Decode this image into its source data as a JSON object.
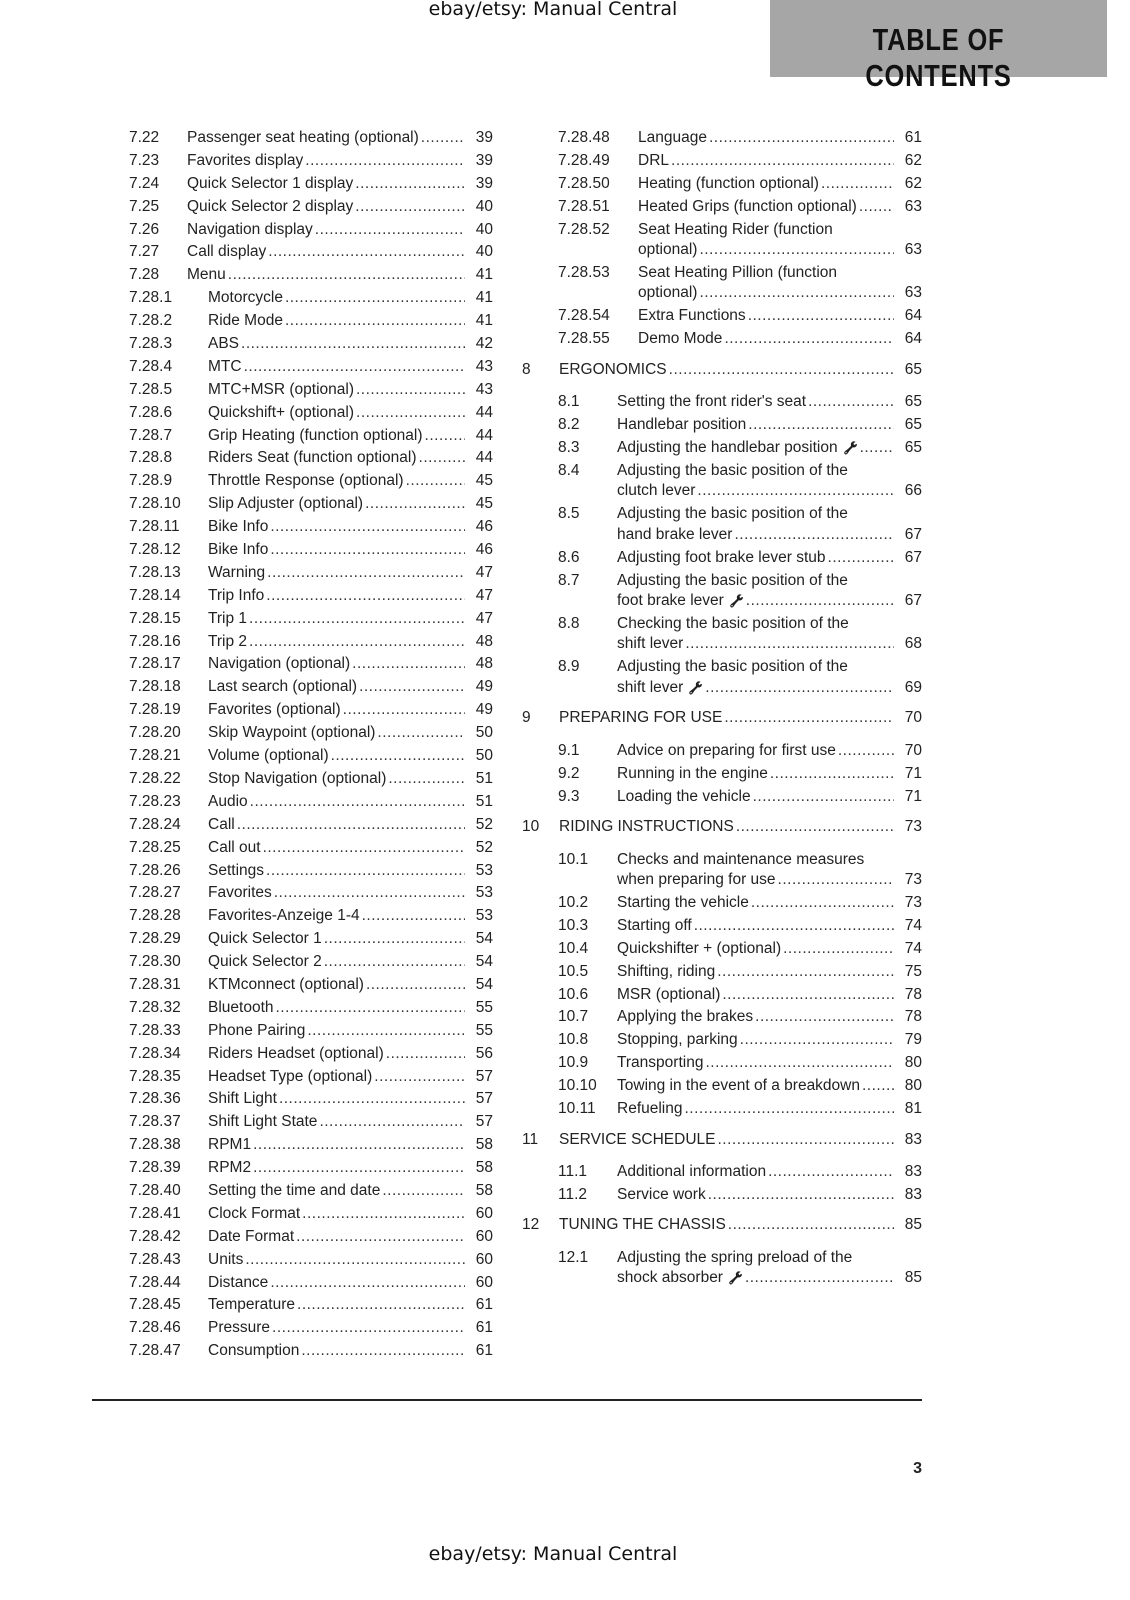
{
  "watermark_top": "ebay/etsy: Manual Central",
  "watermark_bottom": "ebay/etsy: Manual Central",
  "header": {
    "title": "TABLE OF CONTENTS",
    "box_color": "#a6a6a6"
  },
  "page_number": "3",
  "left_column": [
    {
      "num": "7.22",
      "level": 1,
      "lines": [
        "Passenger seat heating (optional)"
      ],
      "page": "39"
    },
    {
      "num": "7.23",
      "level": 1,
      "lines": [
        "Favorites display"
      ],
      "page": "39"
    },
    {
      "num": "7.24",
      "level": 1,
      "lines": [
        "Quick Selector 1 display"
      ],
      "page": "39"
    },
    {
      "num": "7.25",
      "level": 1,
      "lines": [
        "Quick Selector 2 display"
      ],
      "page": "40"
    },
    {
      "num": "7.26",
      "level": 1,
      "lines": [
        "Navigation display"
      ],
      "page": "40"
    },
    {
      "num": "7.27",
      "level": 1,
      "lines": [
        "Call display"
      ],
      "page": "40"
    },
    {
      "num": "7.28",
      "level": 1,
      "lines": [
        "Menu"
      ],
      "page": "41"
    },
    {
      "num": "7.28.1",
      "level": 2,
      "lines": [
        "Motorcycle"
      ],
      "page": "41"
    },
    {
      "num": "7.28.2",
      "level": 2,
      "lines": [
        "Ride Mode"
      ],
      "page": "41"
    },
    {
      "num": "7.28.3",
      "level": 2,
      "lines": [
        "ABS"
      ],
      "page": "42"
    },
    {
      "num": "7.28.4",
      "level": 2,
      "lines": [
        "MTC"
      ],
      "page": "43"
    },
    {
      "num": "7.28.5",
      "level": 2,
      "lines": [
        "MTC+MSR (optional)"
      ],
      "page": "43"
    },
    {
      "num": "7.28.6",
      "level": 2,
      "lines": [
        "Quickshift+ (optional)"
      ],
      "page": "44"
    },
    {
      "num": "7.28.7",
      "level": 2,
      "lines": [
        "Grip Heating (function optional)"
      ],
      "page": "44"
    },
    {
      "num": "7.28.8",
      "level": 2,
      "lines": [
        "Riders Seat (function optional)"
      ],
      "page": "44"
    },
    {
      "num": "7.28.9",
      "level": 2,
      "lines": [
        "Throttle Response (optional)"
      ],
      "page": "45"
    },
    {
      "num": "7.28.10",
      "level": 2,
      "lines": [
        "Slip Adjuster (optional)"
      ],
      "page": "45"
    },
    {
      "num": "7.28.11",
      "level": 2,
      "lines": [
        "Bike Info"
      ],
      "page": "46"
    },
    {
      "num": "7.28.12",
      "level": 2,
      "lines": [
        "Bike Info"
      ],
      "page": "46"
    },
    {
      "num": "7.28.13",
      "level": 2,
      "lines": [
        "Warning"
      ],
      "page": "47"
    },
    {
      "num": "7.28.14",
      "level": 2,
      "lines": [
        "Trip Info"
      ],
      "page": "47"
    },
    {
      "num": "7.28.15",
      "level": 2,
      "lines": [
        "Trip 1"
      ],
      "page": "47"
    },
    {
      "num": "7.28.16",
      "level": 2,
      "lines": [
        "Trip 2"
      ],
      "page": "48"
    },
    {
      "num": "7.28.17",
      "level": 2,
      "lines": [
        "Navigation (optional)"
      ],
      "page": "48"
    },
    {
      "num": "7.28.18",
      "level": 2,
      "lines": [
        "Last search (optional)"
      ],
      "page": "49"
    },
    {
      "num": "7.28.19",
      "level": 2,
      "lines": [
        "Favorites (optional)"
      ],
      "page": "49"
    },
    {
      "num": "7.28.20",
      "level": 2,
      "lines": [
        "Skip Waypoint (optional)"
      ],
      "page": "50"
    },
    {
      "num": "7.28.21",
      "level": 2,
      "lines": [
        "Volume (optional)"
      ],
      "page": "50"
    },
    {
      "num": "7.28.22",
      "level": 2,
      "lines": [
        "Stop Navigation (optional)"
      ],
      "page": "51"
    },
    {
      "num": "7.28.23",
      "level": 2,
      "lines": [
        "Audio"
      ],
      "page": "51"
    },
    {
      "num": "7.28.24",
      "level": 2,
      "lines": [
        "Call"
      ],
      "page": "52"
    },
    {
      "num": "7.28.25",
      "level": 2,
      "lines": [
        "Call out"
      ],
      "page": "52"
    },
    {
      "num": "7.28.26",
      "level": 2,
      "lines": [
        "Settings"
      ],
      "page": "53"
    },
    {
      "num": "7.28.27",
      "level": 2,
      "lines": [
        "Favorites"
      ],
      "page": "53"
    },
    {
      "num": "7.28.28",
      "level": 2,
      "lines": [
        "Favorites-Anzeige 1-4"
      ],
      "page": "53"
    },
    {
      "num": "7.28.29",
      "level": 2,
      "lines": [
        "Quick Selector 1"
      ],
      "page": "54"
    },
    {
      "num": "7.28.30",
      "level": 2,
      "lines": [
        "Quick Selector 2"
      ],
      "page": "54"
    },
    {
      "num": "7.28.31",
      "level": 2,
      "lines": [
        "KTMconnect (optional)"
      ],
      "page": "54"
    },
    {
      "num": "7.28.32",
      "level": 2,
      "lines": [
        "Bluetooth"
      ],
      "page": "55"
    },
    {
      "num": "7.28.33",
      "level": 2,
      "lines": [
        "Phone Pairing"
      ],
      "page": "55"
    },
    {
      "num": "7.28.34",
      "level": 2,
      "lines": [
        "Riders Headset (optional)"
      ],
      "page": "56"
    },
    {
      "num": "7.28.35",
      "level": 2,
      "lines": [
        "Headset Type (optional)"
      ],
      "page": "57"
    },
    {
      "num": "7.28.36",
      "level": 2,
      "lines": [
        "Shift Light"
      ],
      "page": "57"
    },
    {
      "num": "7.28.37",
      "level": 2,
      "lines": [
        "Shift Light State"
      ],
      "page": "57"
    },
    {
      "num": "7.28.38",
      "level": 2,
      "lines": [
        "RPM1"
      ],
      "page": "58"
    },
    {
      "num": "7.28.39",
      "level": 2,
      "lines": [
        "RPM2"
      ],
      "page": "58"
    },
    {
      "num": "7.28.40",
      "level": 2,
      "lines": [
        "Setting the time and date"
      ],
      "page": "58"
    },
    {
      "num": "7.28.41",
      "level": 2,
      "lines": [
        "Clock Format"
      ],
      "page": "60"
    },
    {
      "num": "7.28.42",
      "level": 2,
      "lines": [
        "Date Format"
      ],
      "page": "60"
    },
    {
      "num": "7.28.43",
      "level": 2,
      "lines": [
        "Units"
      ],
      "page": "60"
    },
    {
      "num": "7.28.44",
      "level": 2,
      "lines": [
        "Distance"
      ],
      "page": "60"
    },
    {
      "num": "7.28.45",
      "level": 2,
      "lines": [
        "Temperature"
      ],
      "page": "61"
    },
    {
      "num": "7.28.46",
      "level": 2,
      "lines": [
        "Pressure"
      ],
      "page": "61"
    },
    {
      "num": "7.28.47",
      "level": 2,
      "lines": [
        "Consumption"
      ],
      "page": "61"
    }
  ],
  "right_column": [
    {
      "num": "7.28.48",
      "level": 3,
      "lines": [
        "Language"
      ],
      "page": "61"
    },
    {
      "num": "7.28.49",
      "level": 3,
      "lines": [
        "DRL"
      ],
      "page": "62"
    },
    {
      "num": "7.28.50",
      "level": 3,
      "lines": [
        "Heating (function optional)"
      ],
      "page": "62"
    },
    {
      "num": "7.28.51",
      "level": 3,
      "lines": [
        "Heated Grips (function optional)"
      ],
      "page": "63"
    },
    {
      "num": "7.28.52",
      "level": 3,
      "lines": [
        "Seat Heating Rider (function",
        "optional)"
      ],
      "page": "63"
    },
    {
      "num": "7.28.53",
      "level": 3,
      "lines": [
        "Seat Heating Pillion (function",
        "optional)"
      ],
      "page": "63"
    },
    {
      "num": "7.28.54",
      "level": 3,
      "lines": [
        "Extra Functions"
      ],
      "page": "64"
    },
    {
      "num": "7.28.55",
      "level": 3,
      "lines": [
        "Demo Mode"
      ],
      "page": "64"
    },
    {
      "num": "8",
      "level": 0,
      "lines": [
        "ERGONOMICS"
      ],
      "page": "65"
    },
    {
      "num": "8.1",
      "level": 1,
      "lines": [
        "Setting the front rider's seat"
      ],
      "page": "65"
    },
    {
      "num": "8.2",
      "level": 1,
      "lines": [
        "Handlebar position"
      ],
      "page": "65"
    },
    {
      "num": "8.3",
      "level": 1,
      "lines": [
        "Adjusting the handlebar position"
      ],
      "page": "65",
      "wrench": true
    },
    {
      "num": "8.4",
      "level": 1,
      "lines": [
        "Adjusting the basic position of the",
        "clutch lever"
      ],
      "page": "66"
    },
    {
      "num": "8.5",
      "level": 1,
      "lines": [
        "Adjusting the basic position of the",
        "hand brake lever"
      ],
      "page": "67"
    },
    {
      "num": "8.6",
      "level": 1,
      "lines": [
        "Adjusting foot brake lever stub"
      ],
      "page": "67"
    },
    {
      "num": "8.7",
      "level": 1,
      "lines": [
        "Adjusting the basic position of the",
        "foot brake lever"
      ],
      "page": "67",
      "wrench": true
    },
    {
      "num": "8.8",
      "level": 1,
      "lines": [
        "Checking the basic position of the",
        "shift lever"
      ],
      "page": "68"
    },
    {
      "num": "8.9",
      "level": 1,
      "lines": [
        "Adjusting the basic position of the",
        "shift lever"
      ],
      "page": "69",
      "wrench": true
    },
    {
      "num": "9",
      "level": 0,
      "lines": [
        "PREPARING FOR USE"
      ],
      "page": "70"
    },
    {
      "num": "9.1",
      "level": 1,
      "lines": [
        "Advice on preparing for first use"
      ],
      "page": "70"
    },
    {
      "num": "9.2",
      "level": 1,
      "lines": [
        "Running in the engine"
      ],
      "page": "71"
    },
    {
      "num": "9.3",
      "level": 1,
      "lines": [
        "Loading the vehicle"
      ],
      "page": "71"
    },
    {
      "num": "10",
      "level": 0,
      "lines": [
        "RIDING INSTRUCTIONS"
      ],
      "page": "73"
    },
    {
      "num": "10.1",
      "level": 1,
      "lines": [
        "Checks and maintenance measures",
        "when preparing for use"
      ],
      "page": "73"
    },
    {
      "num": "10.2",
      "level": 1,
      "lines": [
        "Starting the vehicle"
      ],
      "page": "73"
    },
    {
      "num": "10.3",
      "level": 1,
      "lines": [
        "Starting off"
      ],
      "page": "74"
    },
    {
      "num": "10.4",
      "level": 1,
      "lines": [
        "Quickshifter + (optional)"
      ],
      "page": "74"
    },
    {
      "num": "10.5",
      "level": 1,
      "lines": [
        "Shifting, riding"
      ],
      "page": "75"
    },
    {
      "num": "10.6",
      "level": 1,
      "lines": [
        "MSR (optional)"
      ],
      "page": "78"
    },
    {
      "num": "10.7",
      "level": 1,
      "lines": [
        "Applying the brakes"
      ],
      "page": "78"
    },
    {
      "num": "10.8",
      "level": 1,
      "lines": [
        "Stopping, parking"
      ],
      "page": "79"
    },
    {
      "num": "10.9",
      "level": 1,
      "lines": [
        "Transporting"
      ],
      "page": "80"
    },
    {
      "num": "10.10",
      "level": 1,
      "lines": [
        "Towing in the event of a breakdown"
      ],
      "page": "80"
    },
    {
      "num": "10.11",
      "level": 1,
      "lines": [
        "Refueling"
      ],
      "page": "81"
    },
    {
      "num": "11",
      "level": 0,
      "lines": [
        "SERVICE SCHEDULE"
      ],
      "page": "83"
    },
    {
      "num": "11.1",
      "level": 1,
      "lines": [
        "Additional information"
      ],
      "page": "83"
    },
    {
      "num": "11.2",
      "level": 1,
      "lines": [
        "Service work"
      ],
      "page": "83"
    },
    {
      "num": "12",
      "level": 0,
      "lines": [
        "TUNING THE CHASSIS"
      ],
      "page": "85"
    },
    {
      "num": "12.1",
      "level": 1,
      "lines": [
        "Adjusting the spring preload of the",
        "shock absorber"
      ],
      "page": "85",
      "wrench": true
    }
  ]
}
